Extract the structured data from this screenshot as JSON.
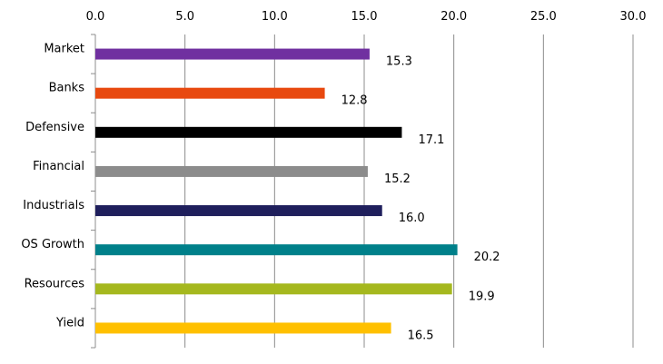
{
  "chart_data": {
    "type": "bar",
    "orientation": "horizontal",
    "categories": [
      "Market",
      "Banks",
      "Defensive",
      "Financial",
      "Industrials",
      "OS Growth",
      "Resources",
      "Yield"
    ],
    "values": [
      15.3,
      12.8,
      17.1,
      15.2,
      16.0,
      20.2,
      19.9,
      16.5
    ],
    "value_labels": [
      "15.3",
      "12.8",
      "17.1",
      "15.2",
      "16.0",
      "20.2",
      "19.9",
      "16.5"
    ],
    "colors": [
      "#7030a0",
      "#e8490f",
      "#000000",
      "#8c8c8c",
      "#1f1f5c",
      "#00808a",
      "#a5b81e",
      "#ffc000"
    ],
    "xlim": [
      0,
      30
    ],
    "ticks": [
      0,
      5,
      10,
      15,
      20,
      25,
      30
    ],
    "tick_labels": [
      "0.0",
      "5.0",
      "10.0",
      "15.0",
      "20.0",
      "25.0",
      "30.0"
    ],
    "axis_position": "top",
    "grid": true,
    "legend": false,
    "title": "",
    "xlabel": "",
    "ylabel": ""
  }
}
